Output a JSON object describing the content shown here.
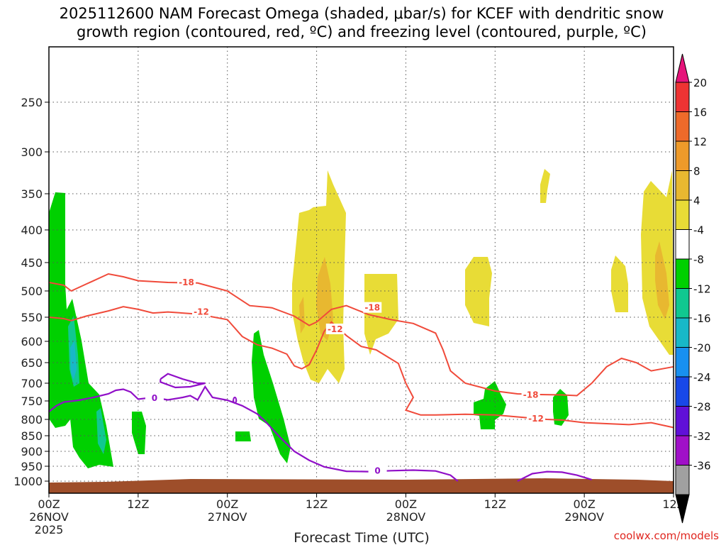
{
  "chart_data": {
    "type": "contour",
    "title_line1": "2025112600 NAM Forecast Omega (shaded, μbar/s) for KCEF with dendritic snow",
    "title_line2": "growth region (contoured, red, ºC) and freezing level (contoured, purple, ºC)",
    "xlabel": "Forecast Time (UTC)",
    "x_ticks": [
      {
        "hour": 0,
        "label1": "00Z",
        "label2": "26NOV",
        "label3": "2025"
      },
      {
        "hour": 12,
        "label1": "12Z",
        "label2": "",
        "label3": ""
      },
      {
        "hour": 24,
        "label1": "00Z",
        "label2": "27NOV",
        "label3": ""
      },
      {
        "hour": 36,
        "label1": "12Z",
        "label2": "",
        "label3": ""
      },
      {
        "hour": 48,
        "label1": "00Z",
        "label2": "28NOV",
        "label3": ""
      },
      {
        "hour": 60,
        "label1": "12Z",
        "label2": "",
        "label3": ""
      },
      {
        "hour": 72,
        "label1": "00Z",
        "label2": "29NOV",
        "label3": ""
      },
      {
        "hour": 84,
        "label1": "12Z",
        "label2": "",
        "label3": ""
      }
    ],
    "y_ticks": [
      "250",
      "300",
      "350",
      "400",
      "450",
      "500",
      "550",
      "600",
      "650",
      "700",
      "750",
      "800",
      "850",
      "900",
      "950",
      "1000"
    ],
    "ylim_hpa": [
      200,
      1030
    ],
    "xlim_hours": [
      0,
      84
    ],
    "colorbar": {
      "labels": [
        "20",
        "16",
        "12",
        "8",
        "4",
        "-4",
        "-8",
        "-12",
        "-16",
        "-20",
        "-24",
        "-28",
        "-32",
        "-36"
      ],
      "top_color": "#e6147a",
      "bottom_color": "#000000",
      "colors": [
        "#ee3333",
        "#ee6a2a",
        "#ee9a2a",
        "#e8b830",
        "#e8dc36",
        "#ffffff",
        "#00d000",
        "#10c890",
        "#18b8c8",
        "#1890f0",
        "#1848e8",
        "#6010d8",
        "#a010c8",
        "#a0a0a0"
      ]
    },
    "omega_colors": {
      "yellow": "#e8dc36",
      "gold": "#e8b830",
      "orange": "#ee9a2a",
      "green": "#00d000",
      "teal": "#10c890",
      "cyan": "#18b8c8"
    },
    "contour_colors": {
      "snow_growth": "#f04a3a",
      "freezing": "#9010c8",
      "ground": "#9e4e2a"
    },
    "contour_labels": {
      "minus18": "-18",
      "minus12": "-12",
      "zero": "0"
    },
    "minus18_line": [
      [
        0,
        485
      ],
      [
        2,
        490
      ],
      [
        3,
        500
      ],
      [
        5,
        488
      ],
      [
        8,
        470
      ],
      [
        10,
        475
      ],
      [
        12,
        482
      ],
      [
        16,
        485
      ],
      [
        20,
        486
      ],
      [
        24,
        500
      ],
      [
        27,
        528
      ],
      [
        30,
        532
      ],
      [
        33,
        548
      ],
      [
        35,
        567
      ],
      [
        36,
        560
      ],
      [
        38,
        535
      ],
      [
        40,
        528
      ],
      [
        43,
        545
      ],
      [
        46,
        555
      ],
      [
        49,
        563
      ],
      [
        52,
        583
      ],
      [
        53,
        620
      ],
      [
        54,
        670
      ],
      [
        56,
        700
      ],
      [
        60,
        722
      ],
      [
        63,
        730
      ],
      [
        66,
        732
      ],
      [
        69,
        733
      ],
      [
        71,
        735
      ],
      [
        73,
        700
      ],
      [
        75,
        660
      ],
      [
        77,
        640
      ],
      [
        79,
        650
      ],
      [
        81,
        670
      ],
      [
        84,
        660
      ]
    ],
    "minus12_line": [
      [
        0,
        550
      ],
      [
        2,
        553
      ],
      [
        3,
        557
      ],
      [
        5,
        548
      ],
      [
        8,
        538
      ],
      [
        10,
        530
      ],
      [
        12,
        535
      ],
      [
        14,
        542
      ],
      [
        16,
        540
      ],
      [
        20,
        544
      ],
      [
        24,
        555
      ],
      [
        26,
        590
      ],
      [
        28,
        608
      ],
      [
        30,
        616
      ],
      [
        32,
        630
      ],
      [
        33,
        658
      ],
      [
        34,
        665
      ],
      [
        35,
        655
      ],
      [
        36,
        620
      ],
      [
        37,
        580
      ],
      [
        38,
        560
      ],
      [
        40,
        588
      ],
      [
        42,
        612
      ],
      [
        44,
        620
      ],
      [
        47,
        652
      ],
      [
        48,
        700
      ],
      [
        49,
        740
      ],
      [
        48,
        775
      ],
      [
        50,
        788
      ],
      [
        52,
        788
      ],
      [
        56,
        786
      ],
      [
        60,
        788
      ],
      [
        64,
        795
      ],
      [
        67,
        800
      ],
      [
        69,
        802
      ],
      [
        72,
        810
      ],
      [
        75,
        813
      ],
      [
        78,
        816
      ],
      [
        81,
        810
      ],
      [
        84,
        825
      ]
    ],
    "freezing_line": [
      [
        0,
        779
      ],
      [
        1,
        763
      ],
      [
        2,
        753
      ],
      [
        4,
        748
      ],
      [
        6,
        740
      ],
      [
        8,
        730
      ],
      [
        9,
        720
      ],
      [
        10,
        717
      ],
      [
        11,
        725
      ],
      [
        12,
        745
      ],
      [
        14,
        740
      ],
      [
        16,
        747
      ],
      [
        18,
        740
      ],
      [
        19,
        735
      ],
      [
        20,
        747
      ],
      [
        21,
        710
      ],
      [
        22,
        740
      ],
      [
        24,
        748
      ],
      [
        26,
        763
      ],
      [
        28,
        785
      ],
      [
        29,
        804
      ],
      [
        31,
        853
      ],
      [
        33,
        900
      ],
      [
        35,
        930
      ],
      [
        37,
        952
      ],
      [
        40,
        967
      ],
      [
        43,
        968
      ],
      [
        46,
        965
      ],
      [
        49,
        963
      ],
      [
        52,
        966
      ],
      [
        54,
        980
      ],
      [
        55,
        1000
      ]
    ],
    "freezing_small_loop": [
      [
        15,
        690
      ],
      [
        16,
        677
      ],
      [
        18,
        690
      ],
      [
        20,
        700
      ],
      [
        21,
        700
      ],
      [
        19,
        710
      ],
      [
        17,
        712
      ],
      [
        15,
        697
      ],
      [
        15,
        690
      ]
    ],
    "freezing_right_arc": [
      [
        63,
        1000
      ],
      [
        65,
        975
      ],
      [
        67,
        968
      ],
      [
        69,
        970
      ],
      [
        71,
        980
      ],
      [
        73,
        995
      ]
    ]
  }
}
